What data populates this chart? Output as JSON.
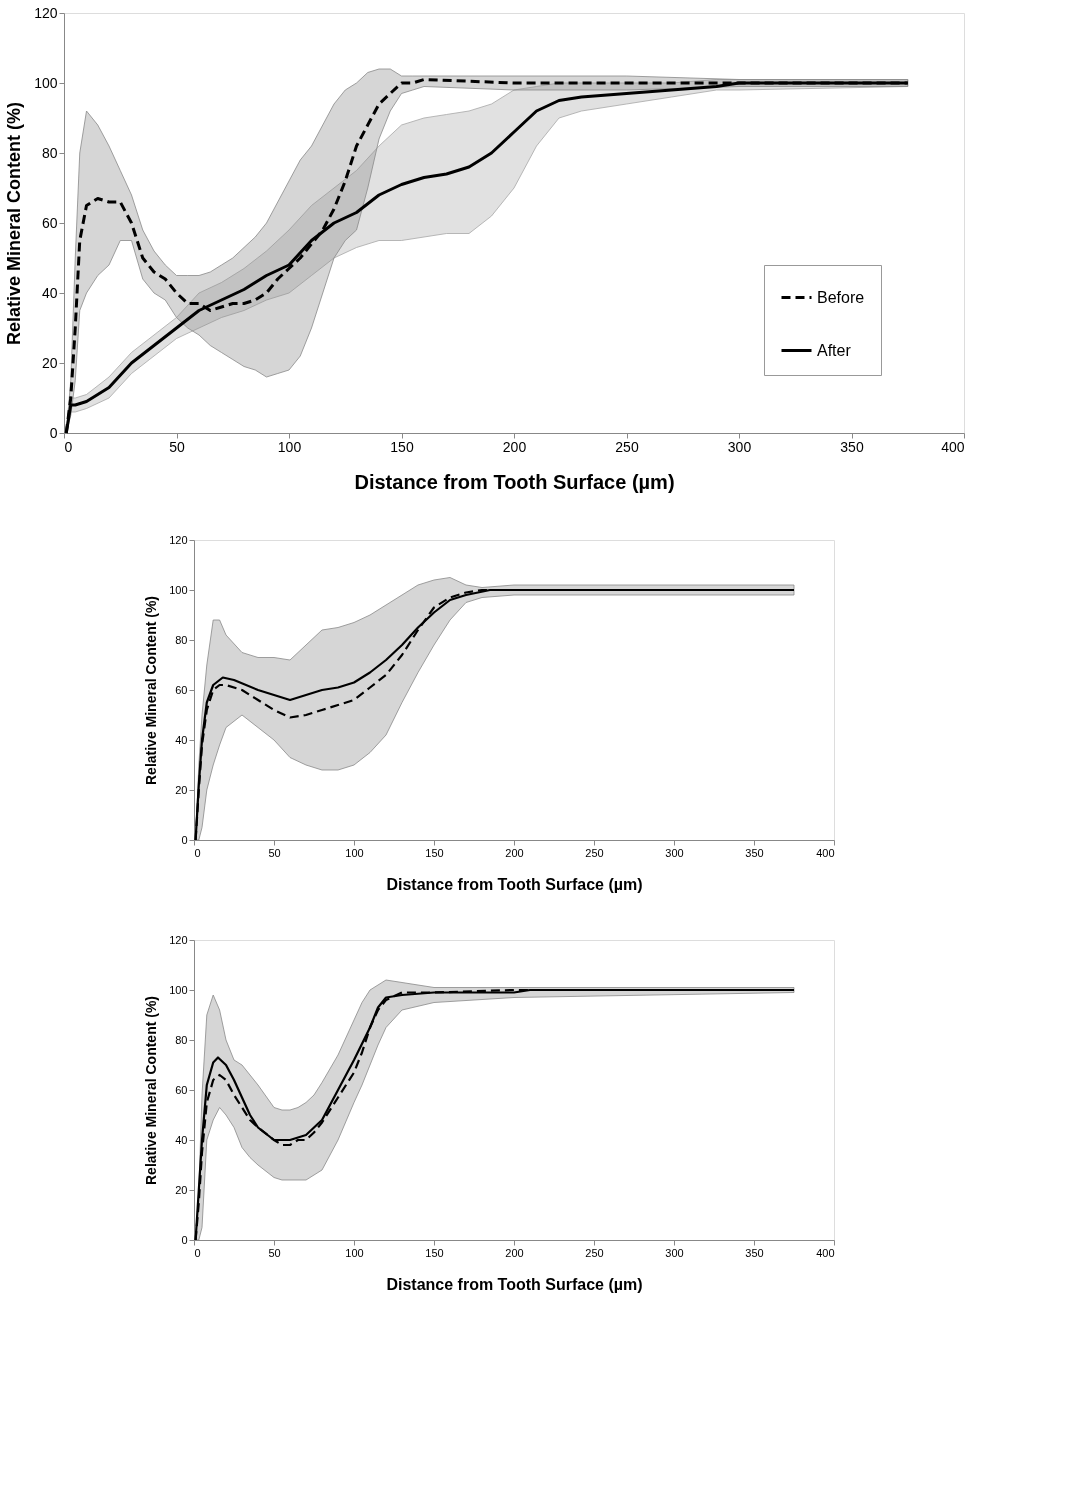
{
  "chart_data": [
    {
      "type": "line",
      "xlabel": "Distance from Tooth Surface (µm)",
      "ylabel": "Relative Mineral Content (%)",
      "xlim": [
        0,
        400
      ],
      "xticks": [
        0,
        50,
        100,
        150,
        200,
        250,
        300,
        350,
        400
      ],
      "ylim": [
        0,
        120
      ],
      "yticks": [
        0,
        20,
        40,
        60,
        80,
        100,
        120
      ],
      "grid": false,
      "legend": "right",
      "marker": "none",
      "series": [
        {
          "name": "Before",
          "color": "#000000",
          "line_style": "dashed",
          "x": [
            1,
            3,
            5,
            7,
            10,
            15,
            20,
            25,
            30,
            35,
            40,
            45,
            50,
            55,
            60,
            65,
            70,
            75,
            80,
            85,
            90,
            95,
            100,
            105,
            110,
            115,
            120,
            125,
            130,
            135,
            140,
            145,
            150,
            155,
            160,
            200,
            250,
            300,
            375
          ],
          "values": [
            0,
            10,
            30,
            55,
            65,
            67,
            66,
            66,
            60,
            50,
            46,
            44,
            40,
            37,
            37,
            35,
            36,
            37,
            37,
            38,
            40,
            44,
            47,
            50,
            54,
            58,
            64,
            72,
            82,
            88,
            94,
            97,
            100,
            100,
            101,
            100,
            100,
            100,
            100
          ],
          "lower": [
            0,
            5,
            15,
            35,
            40,
            45,
            48,
            55,
            55,
            44,
            40,
            38,
            33,
            30,
            28,
            25,
            23,
            21,
            19,
            18,
            16,
            17,
            18,
            22,
            30,
            40,
            50,
            55,
            58,
            70,
            84,
            92,
            97,
            98,
            99,
            98,
            98,
            99,
            99
          ],
          "upper": [
            0,
            15,
            50,
            80,
            92,
            88,
            82,
            75,
            68,
            58,
            52,
            48,
            45,
            45,
            45,
            46,
            48,
            50,
            53,
            56,
            60,
            66,
            72,
            78,
            82,
            88,
            94,
            98,
            100,
            103,
            104,
            104,
            102,
            102,
            102,
            102,
            102,
            101,
            101
          ]
        },
        {
          "name": "After",
          "color": "#000000",
          "line_style": "solid",
          "x": [
            1,
            3,
            5,
            10,
            20,
            30,
            40,
            50,
            60,
            70,
            80,
            90,
            100,
            110,
            120,
            130,
            140,
            150,
            160,
            170,
            180,
            190,
            200,
            210,
            220,
            230,
            250,
            270,
            290,
            300,
            375
          ],
          "values": [
            0,
            8,
            8,
            9,
            13,
            20,
            25,
            30,
            35,
            38,
            41,
            45,
            48,
            55,
            60,
            63,
            68,
            71,
            73,
            74,
            76,
            80,
            86,
            92,
            95,
            96,
            97,
            98,
            99,
            100,
            100
          ],
          "lower": [
            0,
            6,
            6,
            7,
            10,
            17,
            22,
            27,
            30,
            33,
            35,
            38,
            40,
            45,
            50,
            53,
            55,
            55,
            56,
            57,
            57,
            62,
            70,
            82,
            90,
            92,
            94,
            96,
            98,
            98,
            99
          ],
          "upper": [
            0,
            10,
            10,
            11,
            16,
            23,
            28,
            33,
            40,
            43,
            47,
            52,
            58,
            65,
            70,
            75,
            82,
            88,
            90,
            91,
            92,
            94,
            98,
            99,
            100,
            100,
            100,
            100,
            101,
            101,
            101
          ]
        }
      ]
    },
    {
      "type": "line",
      "xlabel": "Distance from Tooth Surface (µm)",
      "ylabel": "Relative Mineral Content (%)",
      "xlim": [
        0,
        400
      ],
      "xticks": [
        0,
        50,
        100,
        150,
        200,
        250,
        300,
        350,
        400
      ],
      "ylim": [
        0,
        120
      ],
      "yticks": [
        0,
        20,
        40,
        60,
        80,
        100,
        120
      ],
      "grid": false,
      "legend": "right",
      "marker": "none",
      "series": [
        {
          "name": "Before",
          "color": "#000000",
          "line_style": "dashed",
          "x": [
            1,
            3,
            5,
            8,
            12,
            16,
            20,
            30,
            40,
            50,
            60,
            70,
            80,
            90,
            100,
            110,
            120,
            130,
            140,
            150,
            160,
            170,
            180,
            200,
            375
          ],
          "values": [
            0,
            20,
            38,
            52,
            60,
            62,
            62,
            60,
            56,
            52,
            49,
            50,
            52,
            54,
            56,
            61,
            66,
            74,
            84,
            93,
            97,
            99,
            100,
            100,
            100
          ],
          "lower": [
            0,
            0,
            5,
            20,
            30,
            38,
            45,
            50,
            45,
            40,
            33,
            30,
            28,
            28,
            30,
            35,
            42,
            55,
            67,
            78,
            88,
            95,
            97,
            98,
            98
          ],
          "upper": [
            0,
            30,
            50,
            70,
            88,
            88,
            82,
            75,
            73,
            73,
            72,
            78,
            84,
            85,
            87,
            90,
            94,
            98,
            102,
            104,
            105,
            102,
            101,
            102,
            102
          ]
        },
        {
          "name": "After",
          "color": "#000000",
          "line_style": "solid",
          "x": [
            1,
            3,
            5,
            8,
            12,
            18,
            25,
            40,
            50,
            60,
            70,
            80,
            90,
            100,
            110,
            120,
            130,
            140,
            150,
            160,
            170,
            185,
            375
          ],
          "values": [
            0,
            22,
            40,
            55,
            62,
            65,
            64,
            60,
            58,
            56,
            58,
            60,
            61,
            63,
            67,
            72,
            78,
            85,
            91,
            96,
            98,
            100,
            100
          ]
        }
      ]
    },
    {
      "type": "line",
      "xlabel": "Distance from Tooth Surface (µm)",
      "ylabel": "Relative Mineral Content (%)",
      "xlim": [
        0,
        400
      ],
      "xticks": [
        0,
        50,
        100,
        150,
        200,
        250,
        300,
        350,
        400
      ],
      "ylim": [
        0,
        120
      ],
      "yticks": [
        0,
        20,
        40,
        60,
        80,
        100,
        120
      ],
      "grid": false,
      "legend": "right",
      "marker": "none",
      "series": [
        {
          "name": "Before",
          "color": "#000000",
          "line_style": "dashed",
          "x": [
            1,
            3,
            5,
            8,
            12,
            16,
            20,
            25,
            30,
            35,
            40,
            50,
            55,
            60,
            65,
            70,
            75,
            80,
            90,
            100,
            105,
            110,
            115,
            120,
            130,
            150,
            200,
            375
          ],
          "values": [
            0,
            15,
            35,
            55,
            64,
            66,
            64,
            58,
            53,
            48,
            45,
            40,
            38,
            38,
            40,
            40,
            43,
            47,
            57,
            67,
            75,
            85,
            92,
            96,
            99,
            99,
            100,
            100
          ],
          "lower": [
            0,
            0,
            5,
            40,
            48,
            53,
            50,
            45,
            37,
            33,
            30,
            25,
            24,
            24,
            24,
            24,
            26,
            28,
            40,
            55,
            62,
            70,
            78,
            85,
            92,
            95,
            97,
            99
          ],
          "upper": [
            0,
            20,
            58,
            90,
            98,
            92,
            80,
            72,
            70,
            66,
            62,
            53,
            52,
            52,
            53,
            55,
            58,
            63,
            74,
            88,
            95,
            100,
            102,
            104,
            103,
            101,
            101,
            101
          ]
        },
        {
          "name": "After",
          "color": "#000000",
          "line_style": "solid",
          "x": [
            1,
            3,
            5,
            8,
            12,
            15,
            20,
            25,
            30,
            35,
            40,
            50,
            60,
            70,
            80,
            90,
            100,
            110,
            115,
            120,
            130,
            150,
            200,
            210,
            375
          ],
          "values": [
            0,
            20,
            40,
            62,
            71,
            73,
            70,
            64,
            57,
            50,
            45,
            40,
            40,
            42,
            48,
            60,
            72,
            85,
            93,
            97,
            98,
            99,
            99,
            100,
            100
          ]
        }
      ]
    }
  ]
}
